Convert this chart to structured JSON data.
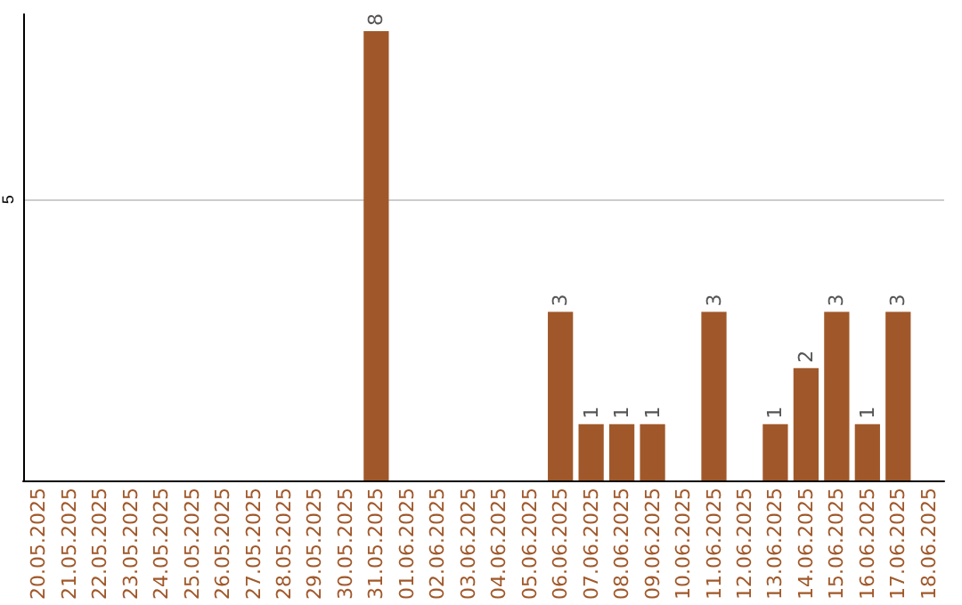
{
  "chart_data": {
    "type": "bar",
    "categories": [
      "20.05.2025",
      "21.05.2025",
      "22.05.2025",
      "23.05.2025",
      "24.05.2025",
      "25.05.2025",
      "26.05.2025",
      "27.05.2025",
      "28.05.2025",
      "29.05.2025",
      "30.05.2025",
      "31.05.2025",
      "01.06.2025",
      "02.06.2025",
      "03.06.2025",
      "04.06.2025",
      "05.06.2025",
      "06.06.2025",
      "07.06.2025",
      "08.06.2025",
      "09.06.2025",
      "10.06.2025",
      "11.06.2025",
      "12.06.2025",
      "13.06.2025",
      "14.06.2025",
      "15.06.2025",
      "16.06.2025",
      "17.06.2025",
      "18.06.2025"
    ],
    "values": [
      0,
      0,
      0,
      0,
      0,
      0,
      0,
      0,
      0,
      0,
      0,
      8,
      0,
      0,
      0,
      0,
      0,
      3,
      1,
      1,
      1,
      0,
      3,
      0,
      1,
      2,
      3,
      1,
      3,
      0
    ],
    "value_labels": [
      null,
      null,
      null,
      null,
      null,
      null,
      null,
      null,
      null,
      null,
      null,
      "8",
      null,
      null,
      null,
      null,
      null,
      "3",
      "1",
      "1",
      "1",
      null,
      "3",
      null,
      "1",
      "2",
      "3",
      "1",
      "3",
      null
    ],
    "color": "#a0582a",
    "ylim": [
      0,
      8.3
    ],
    "yticks": [
      5
    ],
    "grid": "y"
  }
}
